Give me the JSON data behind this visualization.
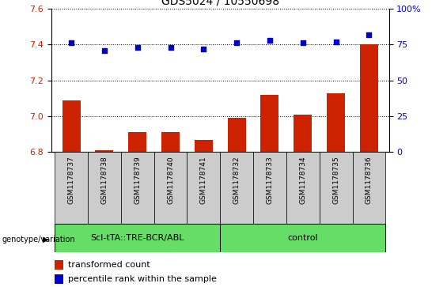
{
  "title": "GDS5024 / 10550698",
  "samples": [
    "GSM1178737",
    "GSM1178738",
    "GSM1178739",
    "GSM1178740",
    "GSM1178741",
    "GSM1178732",
    "GSM1178733",
    "GSM1178734",
    "GSM1178735",
    "GSM1178736"
  ],
  "transformed_count": [
    7.09,
    6.81,
    6.91,
    6.91,
    6.87,
    6.99,
    7.12,
    7.01,
    7.13,
    7.4
  ],
  "percentile_rank": [
    76,
    71,
    73,
    73,
    72,
    76,
    78,
    76,
    77,
    82
  ],
  "ylim_left": [
    6.8,
    7.6
  ],
  "ylim_right": [
    0,
    100
  ],
  "yticks_left": [
    6.8,
    7.0,
    7.2,
    7.4,
    7.6
  ],
  "yticks_right": [
    0,
    25,
    50,
    75,
    100
  ],
  "bar_color": "#cc2200",
  "dot_color": "#0000cc",
  "group1_label": "Scl-tTA::TRE-BCR/ABL",
  "group2_label": "control",
  "group1_count": 5,
  "group2_count": 5,
  "group_bg_color": "#66dd66",
  "sample_bg_color": "#cccccc",
  "legend_bar_label": "transformed count",
  "legend_dot_label": "percentile rank within the sample",
  "genotype_label": "genotype/variation",
  "dotted_line_color": "#000000",
  "title_fontsize": 10,
  "tick_fontsize": 8,
  "sample_fontsize": 6.5,
  "group_fontsize": 8,
  "legend_fontsize": 8
}
